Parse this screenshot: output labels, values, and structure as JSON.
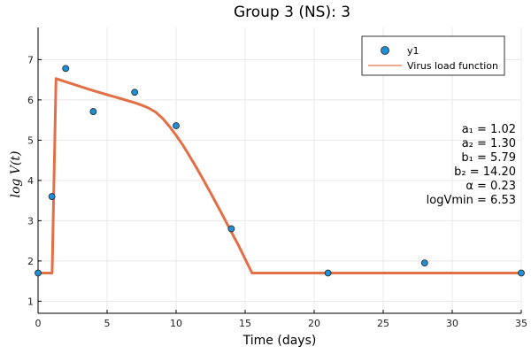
{
  "chart_data": {
    "type": "scatter",
    "title": "Group 3 (NS): 3",
    "xlabel": "Time (days)",
    "ylabel": "log V(t)",
    "xlim": [
      0,
      35
    ],
    "ylim": [
      0.7,
      7.8
    ],
    "xticks": [
      0,
      5,
      10,
      15,
      20,
      25,
      30,
      35
    ],
    "yticks": [
      1,
      2,
      3,
      4,
      5,
      6,
      7
    ],
    "grid": true,
    "legend_position": "top-right",
    "series": [
      {
        "name": "y1",
        "kind": "scatter",
        "color": "#1f8fd6",
        "x": [
          0,
          1,
          2,
          4,
          7,
          10,
          14,
          21,
          28,
          35
        ],
        "y": [
          1.7,
          3.6,
          6.78,
          5.71,
          6.19,
          5.36,
          2.8,
          1.7,
          1.95,
          1.7
        ]
      },
      {
        "name": "Virus load function",
        "kind": "line",
        "color": "#e26f46",
        "x": [
          0,
          1.02,
          1.3,
          2,
          3,
          4,
          5,
          6,
          7,
          7.5,
          8,
          8.5,
          9,
          9.5,
          10,
          10.5,
          11,
          11.5,
          12,
          12.5,
          13,
          13.5,
          14,
          14.2,
          14.5,
          15,
          15.5,
          20,
          25,
          30,
          35
        ],
        "y": [
          1.7,
          1.7,
          6.53,
          6.45,
          6.34,
          6.23,
          6.13,
          6.03,
          5.93,
          5.87,
          5.8,
          5.7,
          5.55,
          5.35,
          5.12,
          4.87,
          4.59,
          4.3,
          4.0,
          3.69,
          3.37,
          3.05,
          2.72,
          2.59,
          2.4,
          2.05,
          1.7,
          1.7,
          1.7,
          1.7,
          1.7
        ]
      }
    ],
    "annotations": [
      "a₁ = 1.02",
      "a₂ = 1.30",
      "b₁ = 5.79",
      "b₂ = 14.20",
      "α = 0.23",
      "logVmin = 6.53"
    ]
  }
}
